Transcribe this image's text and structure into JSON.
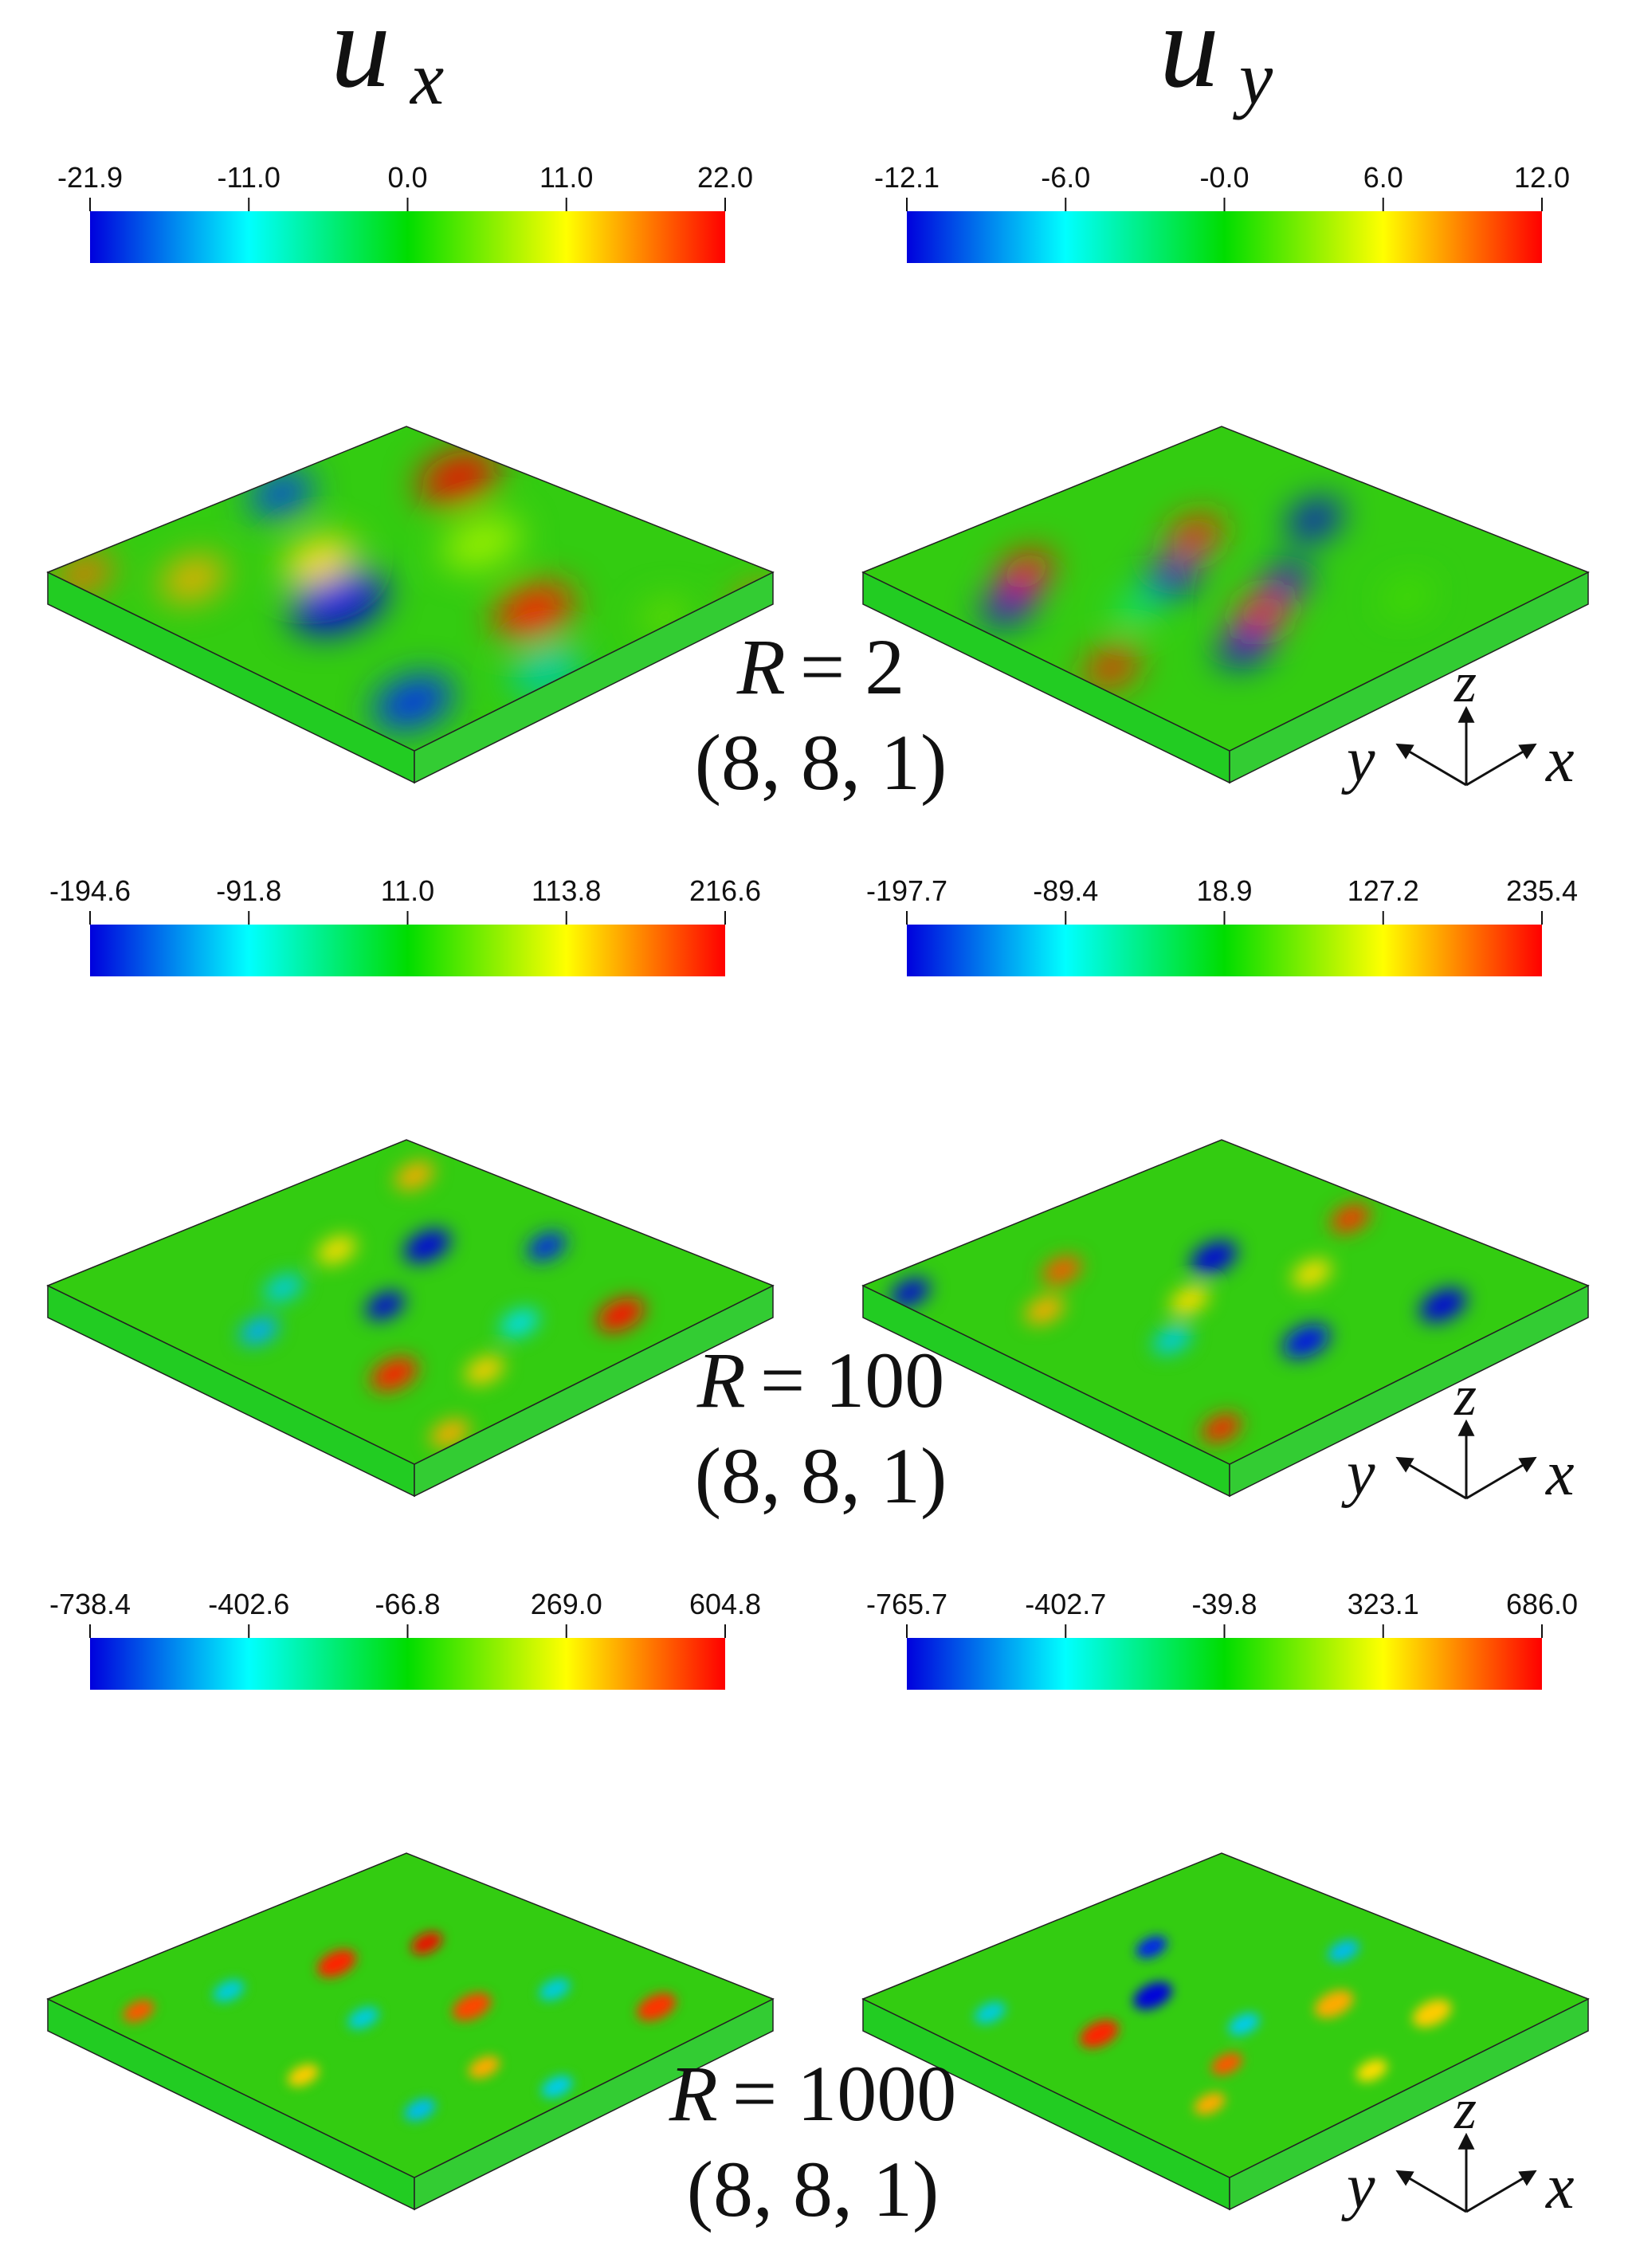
{
  "headers": {
    "left_symbol": "u",
    "left_sub": "x",
    "right_symbol": "u",
    "right_sub": "y"
  },
  "colormap": {
    "stops": [
      "#0000dd",
      "#00ffff",
      "#00dd00",
      "#ffff00",
      "#ff0000"
    ]
  },
  "rows": [
    {
      "r_label": "R = 2",
      "r_var": "R",
      "r_eq": "= 2",
      "modes": "(8, 8, 1)",
      "ux_ticks": [
        "-21.9",
        "-11.0",
        "0.0",
        "11.0",
        "22.0"
      ],
      "uy_ticks": [
        "-12.1",
        "-6.0",
        "-0.0",
        "6.0",
        "12.0"
      ]
    },
    {
      "r_label": "R = 100",
      "r_var": "R",
      "r_eq": "= 100",
      "modes": "(8, 8, 1)",
      "ux_ticks": [
        "-194.6",
        "-91.8",
        "11.0",
        "113.8",
        "216.6"
      ],
      "uy_ticks": [
        "-197.7",
        "-89.4",
        "18.9",
        "127.2",
        "235.4"
      ]
    },
    {
      "r_label": "R = 1000",
      "r_var": "R",
      "r_eq": "= 1000",
      "modes": "(8, 8, 1)",
      "ux_ticks": [
        "-738.4",
        "-402.6",
        "-66.8",
        "269.0",
        "604.8"
      ],
      "uy_ticks": [
        "-765.7",
        "-402.7",
        "-39.8",
        "323.1",
        "686.0"
      ]
    }
  ],
  "axes": {
    "z": "z",
    "y": "y",
    "x": "x"
  }
}
